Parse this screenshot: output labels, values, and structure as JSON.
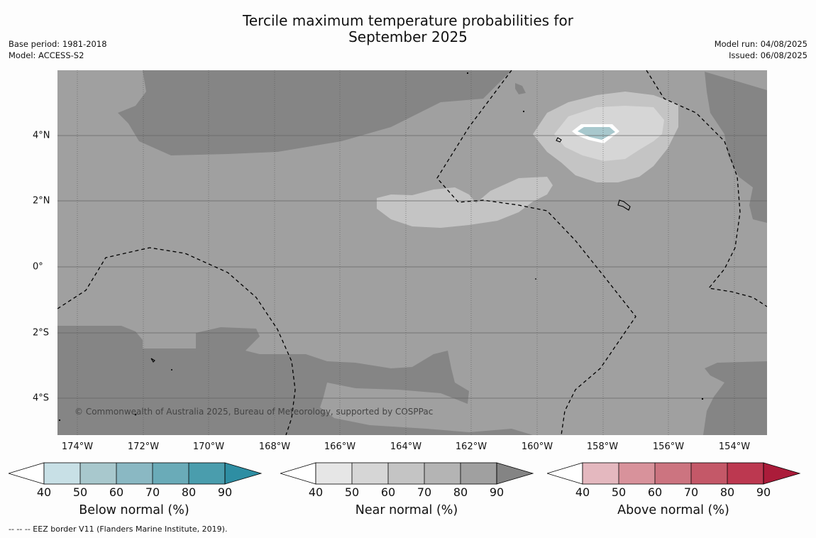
{
  "title_line1": "Tercile maximum temperature probabilities for",
  "title_line2": "September 2025",
  "meta_left": {
    "base_period": "Base period: 1981-2018",
    "model": "Model: ACCESS-S2"
  },
  "meta_right": {
    "model_run": "Model run: 04/08/2025",
    "issued": "Issued: 06/08/2025"
  },
  "map": {
    "lon_labels": [
      "174°W",
      "172°W",
      "170°W",
      "168°W",
      "166°W",
      "164°W",
      "162°W",
      "160°W",
      "158°W",
      "156°W",
      "154°W"
    ],
    "lat_labels": [
      "4°N",
      "2°N",
      "0°",
      "2°S",
      "4°S"
    ],
    "copyright": "© Commonwealth of Australia 2025, Bureau of Meteorology, supported by COSPPac"
  },
  "colorbars": [
    {
      "title": "Below normal (%)",
      "ticks": [
        "40",
        "50",
        "60",
        "70",
        "80",
        "90"
      ],
      "colors": [
        "#ffffff",
        "#c8e0e6",
        "#a8c8cd",
        "#8ab8c3",
        "#6aabb8",
        "#4a9dad",
        "#2e8ea3"
      ]
    },
    {
      "title": "Near normal (%)",
      "ticks": [
        "40",
        "50",
        "60",
        "70",
        "80",
        "90"
      ],
      "colors": [
        "#ffffff",
        "#e6e6e6",
        "#d6d6d6",
        "#c4c4c4",
        "#b4b4b4",
        "#a0a0a0",
        "#848484"
      ]
    },
    {
      "title": "Above normal (%)",
      "ticks": [
        "40",
        "50",
        "60",
        "70",
        "80",
        "90"
      ],
      "colors": [
        "#ffffff",
        "#e4b8bf",
        "#d8929b",
        "#cc7480",
        "#c45868",
        "#bc3850",
        "#ab1c3a"
      ]
    }
  ],
  "footnote": "--  --  -- EEZ border V11 (Flanders Marine Institute, 2019)."
}
